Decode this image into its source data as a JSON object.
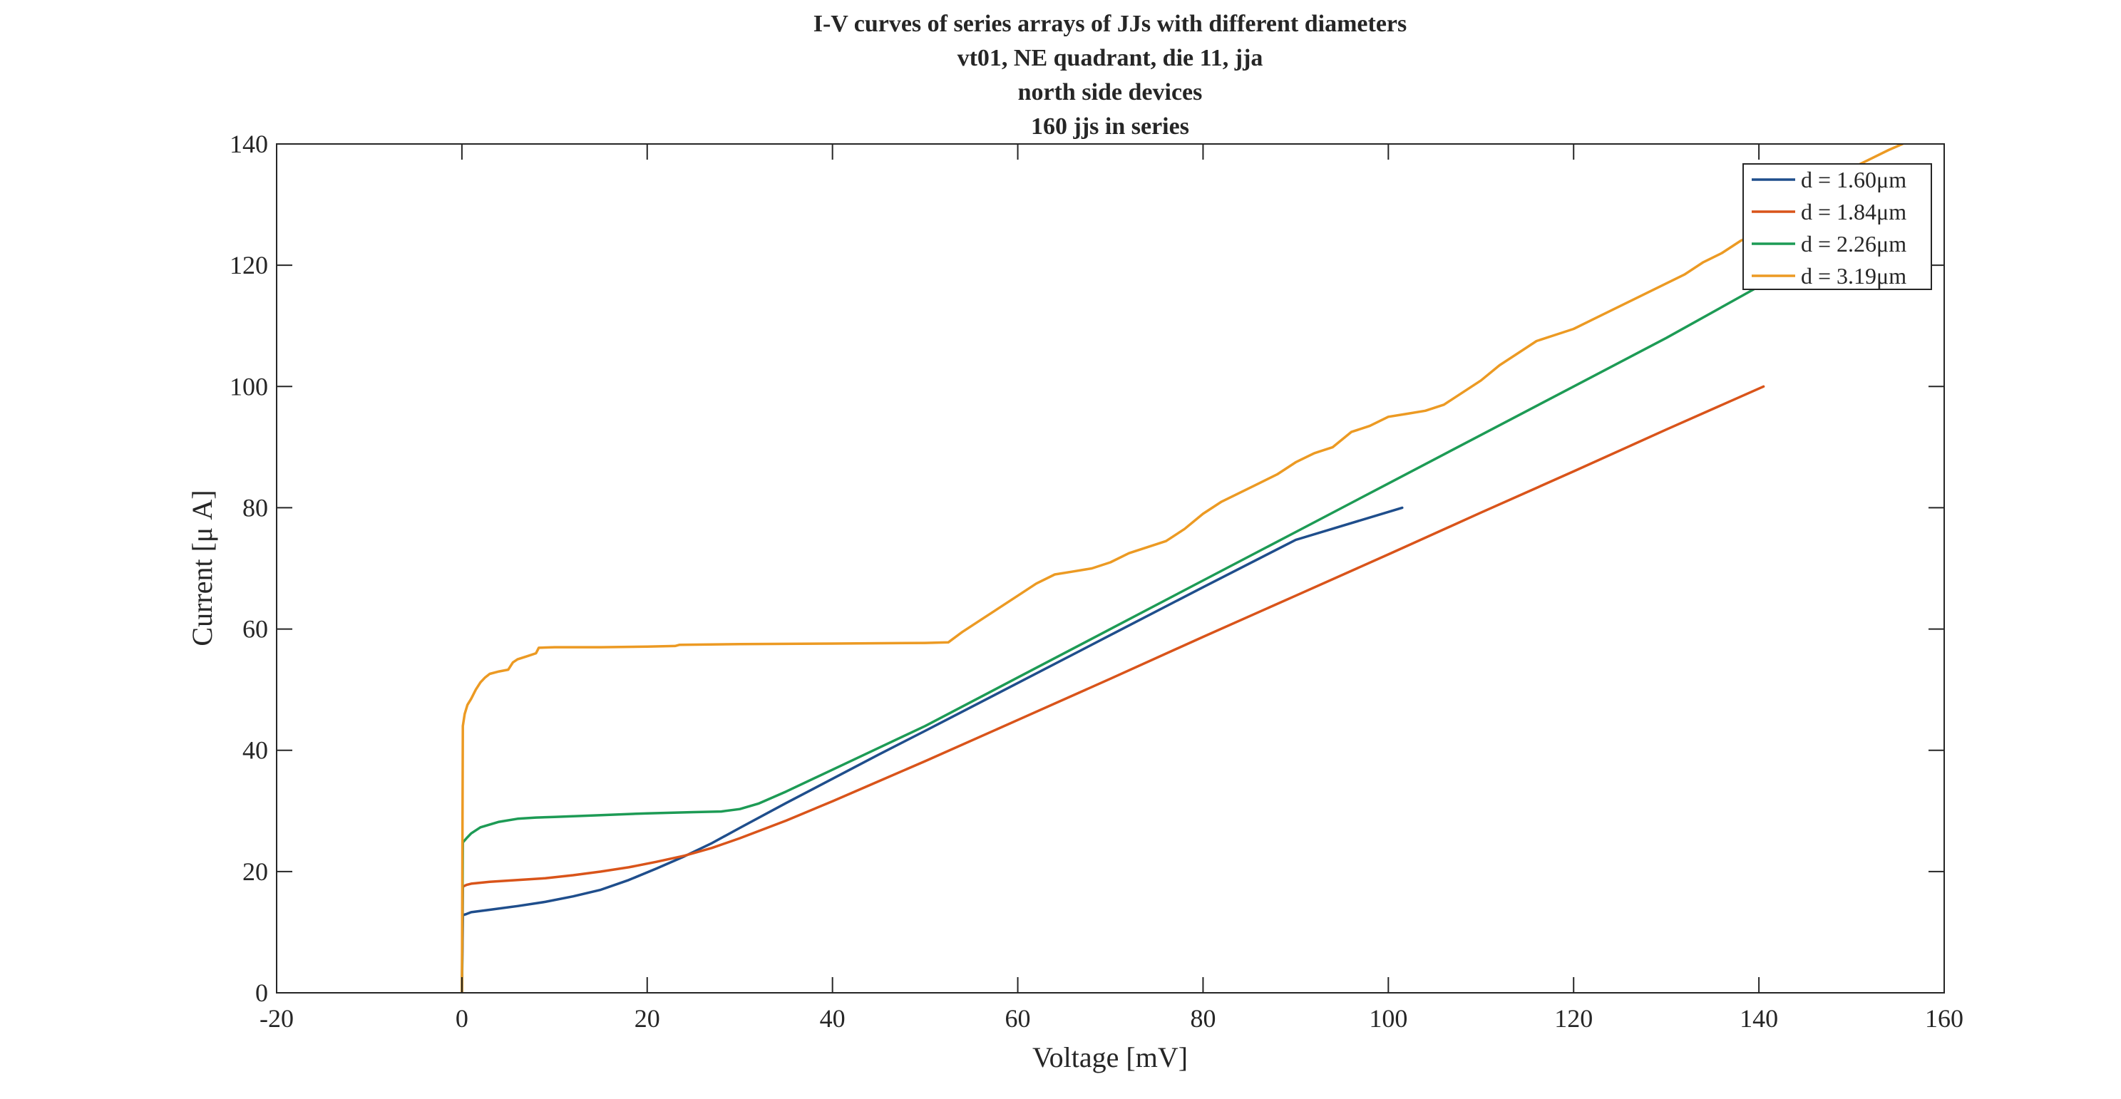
{
  "chart_data": {
    "type": "line",
    "title_lines": [
      "I-V curves of series arrays of JJs with different diameters",
      "vt01, NE quadrant, die 11, jja",
      "north side devices",
      "160 jjs in series"
    ],
    "xlabel": "Voltage [mV]",
    "ylabel": "Current [μ A]",
    "xlim": [
      -20,
      160
    ],
    "ylim": [
      0,
      140
    ],
    "x_ticks": [
      -20,
      0,
      20,
      40,
      60,
      80,
      100,
      120,
      140,
      160
    ],
    "y_ticks": [
      0,
      20,
      40,
      60,
      80,
      100,
      120,
      140
    ],
    "x_tick_labels": [
      "-20",
      "0",
      "20",
      "40",
      "60",
      "80",
      "100",
      "120",
      "140",
      "160"
    ],
    "y_tick_labels": [
      "0",
      "20",
      "40",
      "60",
      "80",
      "100",
      "120",
      "140"
    ],
    "grid": false,
    "legend_position": "top-right",
    "series": [
      {
        "name": "d = 1.60μm",
        "color": "#1f4e8c",
        "points": [
          [
            0,
            0
          ],
          [
            0.1,
            12.8
          ],
          [
            0.5,
            13.0
          ],
          [
            1,
            13.3
          ],
          [
            3,
            13.7
          ],
          [
            6,
            14.3
          ],
          [
            9,
            15.0
          ],
          [
            12,
            15.9
          ],
          [
            15,
            17.0
          ],
          [
            18,
            18.6
          ],
          [
            21,
            20.5
          ],
          [
            24,
            22.5
          ],
          [
            27,
            24.7
          ],
          [
            30,
            27.2
          ],
          [
            35,
            31.3
          ],
          [
            40,
            35.3
          ],
          [
            45,
            39.3
          ],
          [
            50,
            43.2
          ],
          [
            60,
            51.1
          ],
          [
            70,
            59.0
          ],
          [
            80,
            66.9
          ],
          [
            90,
            74.7
          ],
          [
            101.5,
            80.0
          ]
        ]
      },
      {
        "name": "d = 1.84μm",
        "color": "#d9541a",
        "points": [
          [
            0,
            0
          ],
          [
            0.1,
            17.5
          ],
          [
            0.5,
            17.8
          ],
          [
            1,
            18.0
          ],
          [
            3,
            18.3
          ],
          [
            6,
            18.6
          ],
          [
            9,
            18.9
          ],
          [
            12,
            19.4
          ],
          [
            15,
            20.0
          ],
          [
            18,
            20.7
          ],
          [
            21,
            21.6
          ],
          [
            24,
            22.6
          ],
          [
            27,
            23.9
          ],
          [
            30,
            25.5
          ],
          [
            35,
            28.4
          ],
          [
            40,
            31.6
          ],
          [
            45,
            34.9
          ],
          [
            50,
            38.2
          ],
          [
            60,
            45.0
          ],
          [
            70,
            51.8
          ],
          [
            80,
            58.7
          ],
          [
            90,
            65.5
          ],
          [
            100,
            72.3
          ],
          [
            110,
            79.2
          ],
          [
            120,
            86.0
          ],
          [
            130,
            92.9
          ],
          [
            140.5,
            100.0
          ]
        ]
      },
      {
        "name": "d = 2.26μm",
        "color": "#1d9b55",
        "points": [
          [
            0,
            0
          ],
          [
            0.1,
            24.8
          ],
          [
            0.5,
            25.5
          ],
          [
            1,
            26.3
          ],
          [
            2,
            27.3
          ],
          [
            4,
            28.2
          ],
          [
            6,
            28.7
          ],
          [
            8,
            28.9
          ],
          [
            10,
            29.0
          ],
          [
            15,
            29.3
          ],
          [
            20,
            29.6
          ],
          [
            25,
            29.8
          ],
          [
            28,
            29.9
          ],
          [
            30,
            30.3
          ],
          [
            32,
            31.2
          ],
          [
            35,
            33.2
          ],
          [
            40,
            36.8
          ],
          [
            45,
            40.4
          ],
          [
            50,
            44.0
          ],
          [
            60,
            52.0
          ],
          [
            70,
            60.0
          ],
          [
            80,
            68.0
          ],
          [
            90,
            76.0
          ],
          [
            100,
            84.0
          ],
          [
            110,
            92.0
          ],
          [
            120,
            100.0
          ],
          [
            130,
            108.0
          ],
          [
            140,
            116.5
          ]
        ]
      },
      {
        "name": "d = 3.19μm",
        "color": "#ec9a23",
        "points": [
          [
            0,
            0
          ],
          [
            0.1,
            44.0
          ],
          [
            0.3,
            46.0
          ],
          [
            0.6,
            47.5
          ],
          [
            1,
            48.5
          ],
          [
            1.5,
            50.0
          ],
          [
            2,
            51.2
          ],
          [
            2.5,
            52.0
          ],
          [
            3,
            52.6
          ],
          [
            4,
            53.0
          ],
          [
            5,
            53.3
          ],
          [
            5.5,
            54.5
          ],
          [
            6,
            55.0
          ],
          [
            7,
            55.5
          ],
          [
            8,
            56.0
          ],
          [
            8.3,
            56.9
          ],
          [
            10,
            57.0
          ],
          [
            15,
            57.0
          ],
          [
            20,
            57.1
          ],
          [
            23,
            57.2
          ],
          [
            23.5,
            57.4
          ],
          [
            30,
            57.5
          ],
          [
            40,
            57.6
          ],
          [
            50,
            57.7
          ],
          [
            52.5,
            57.8
          ],
          [
            54,
            59.5
          ],
          [
            56,
            61.5
          ],
          [
            58,
            63.5
          ],
          [
            60,
            65.5
          ],
          [
            62,
            67.5
          ],
          [
            64,
            69.0
          ],
          [
            66,
            69.5
          ],
          [
            68,
            70.0
          ],
          [
            70,
            71.0
          ],
          [
            72,
            72.5
          ],
          [
            74,
            73.5
          ],
          [
            76,
            74.5
          ],
          [
            78,
            76.5
          ],
          [
            80,
            79.0
          ],
          [
            82,
            81.0
          ],
          [
            84,
            82.5
          ],
          [
            86,
            84.0
          ],
          [
            88,
            85.5
          ],
          [
            90,
            87.5
          ],
          [
            92,
            89.0
          ],
          [
            94,
            90.0
          ],
          [
            96,
            92.5
          ],
          [
            98,
            93.5
          ],
          [
            100,
            95.0
          ],
          [
            102,
            95.5
          ],
          [
            104,
            96.0
          ],
          [
            106,
            97.0
          ],
          [
            108,
            99.0
          ],
          [
            110,
            101.0
          ],
          [
            112,
            103.5
          ],
          [
            114,
            105.5
          ],
          [
            116,
            107.5
          ],
          [
            118,
            108.5
          ],
          [
            120,
            109.5
          ],
          [
            122,
            111.0
          ],
          [
            124,
            112.5
          ],
          [
            126,
            114.0
          ],
          [
            128,
            115.5
          ],
          [
            130,
            117.0
          ],
          [
            132,
            118.5
          ],
          [
            134,
            120.5
          ],
          [
            136,
            122.0
          ],
          [
            138,
            124.0
          ],
          [
            140,
            125.5
          ],
          [
            142,
            128.0
          ],
          [
            144,
            130.0
          ],
          [
            146,
            132.0
          ],
          [
            148,
            134.0
          ],
          [
            150,
            136.0
          ],
          [
            152,
            137.5
          ],
          [
            154,
            139.0
          ],
          [
            155.5,
            140.0
          ]
        ]
      }
    ]
  }
}
